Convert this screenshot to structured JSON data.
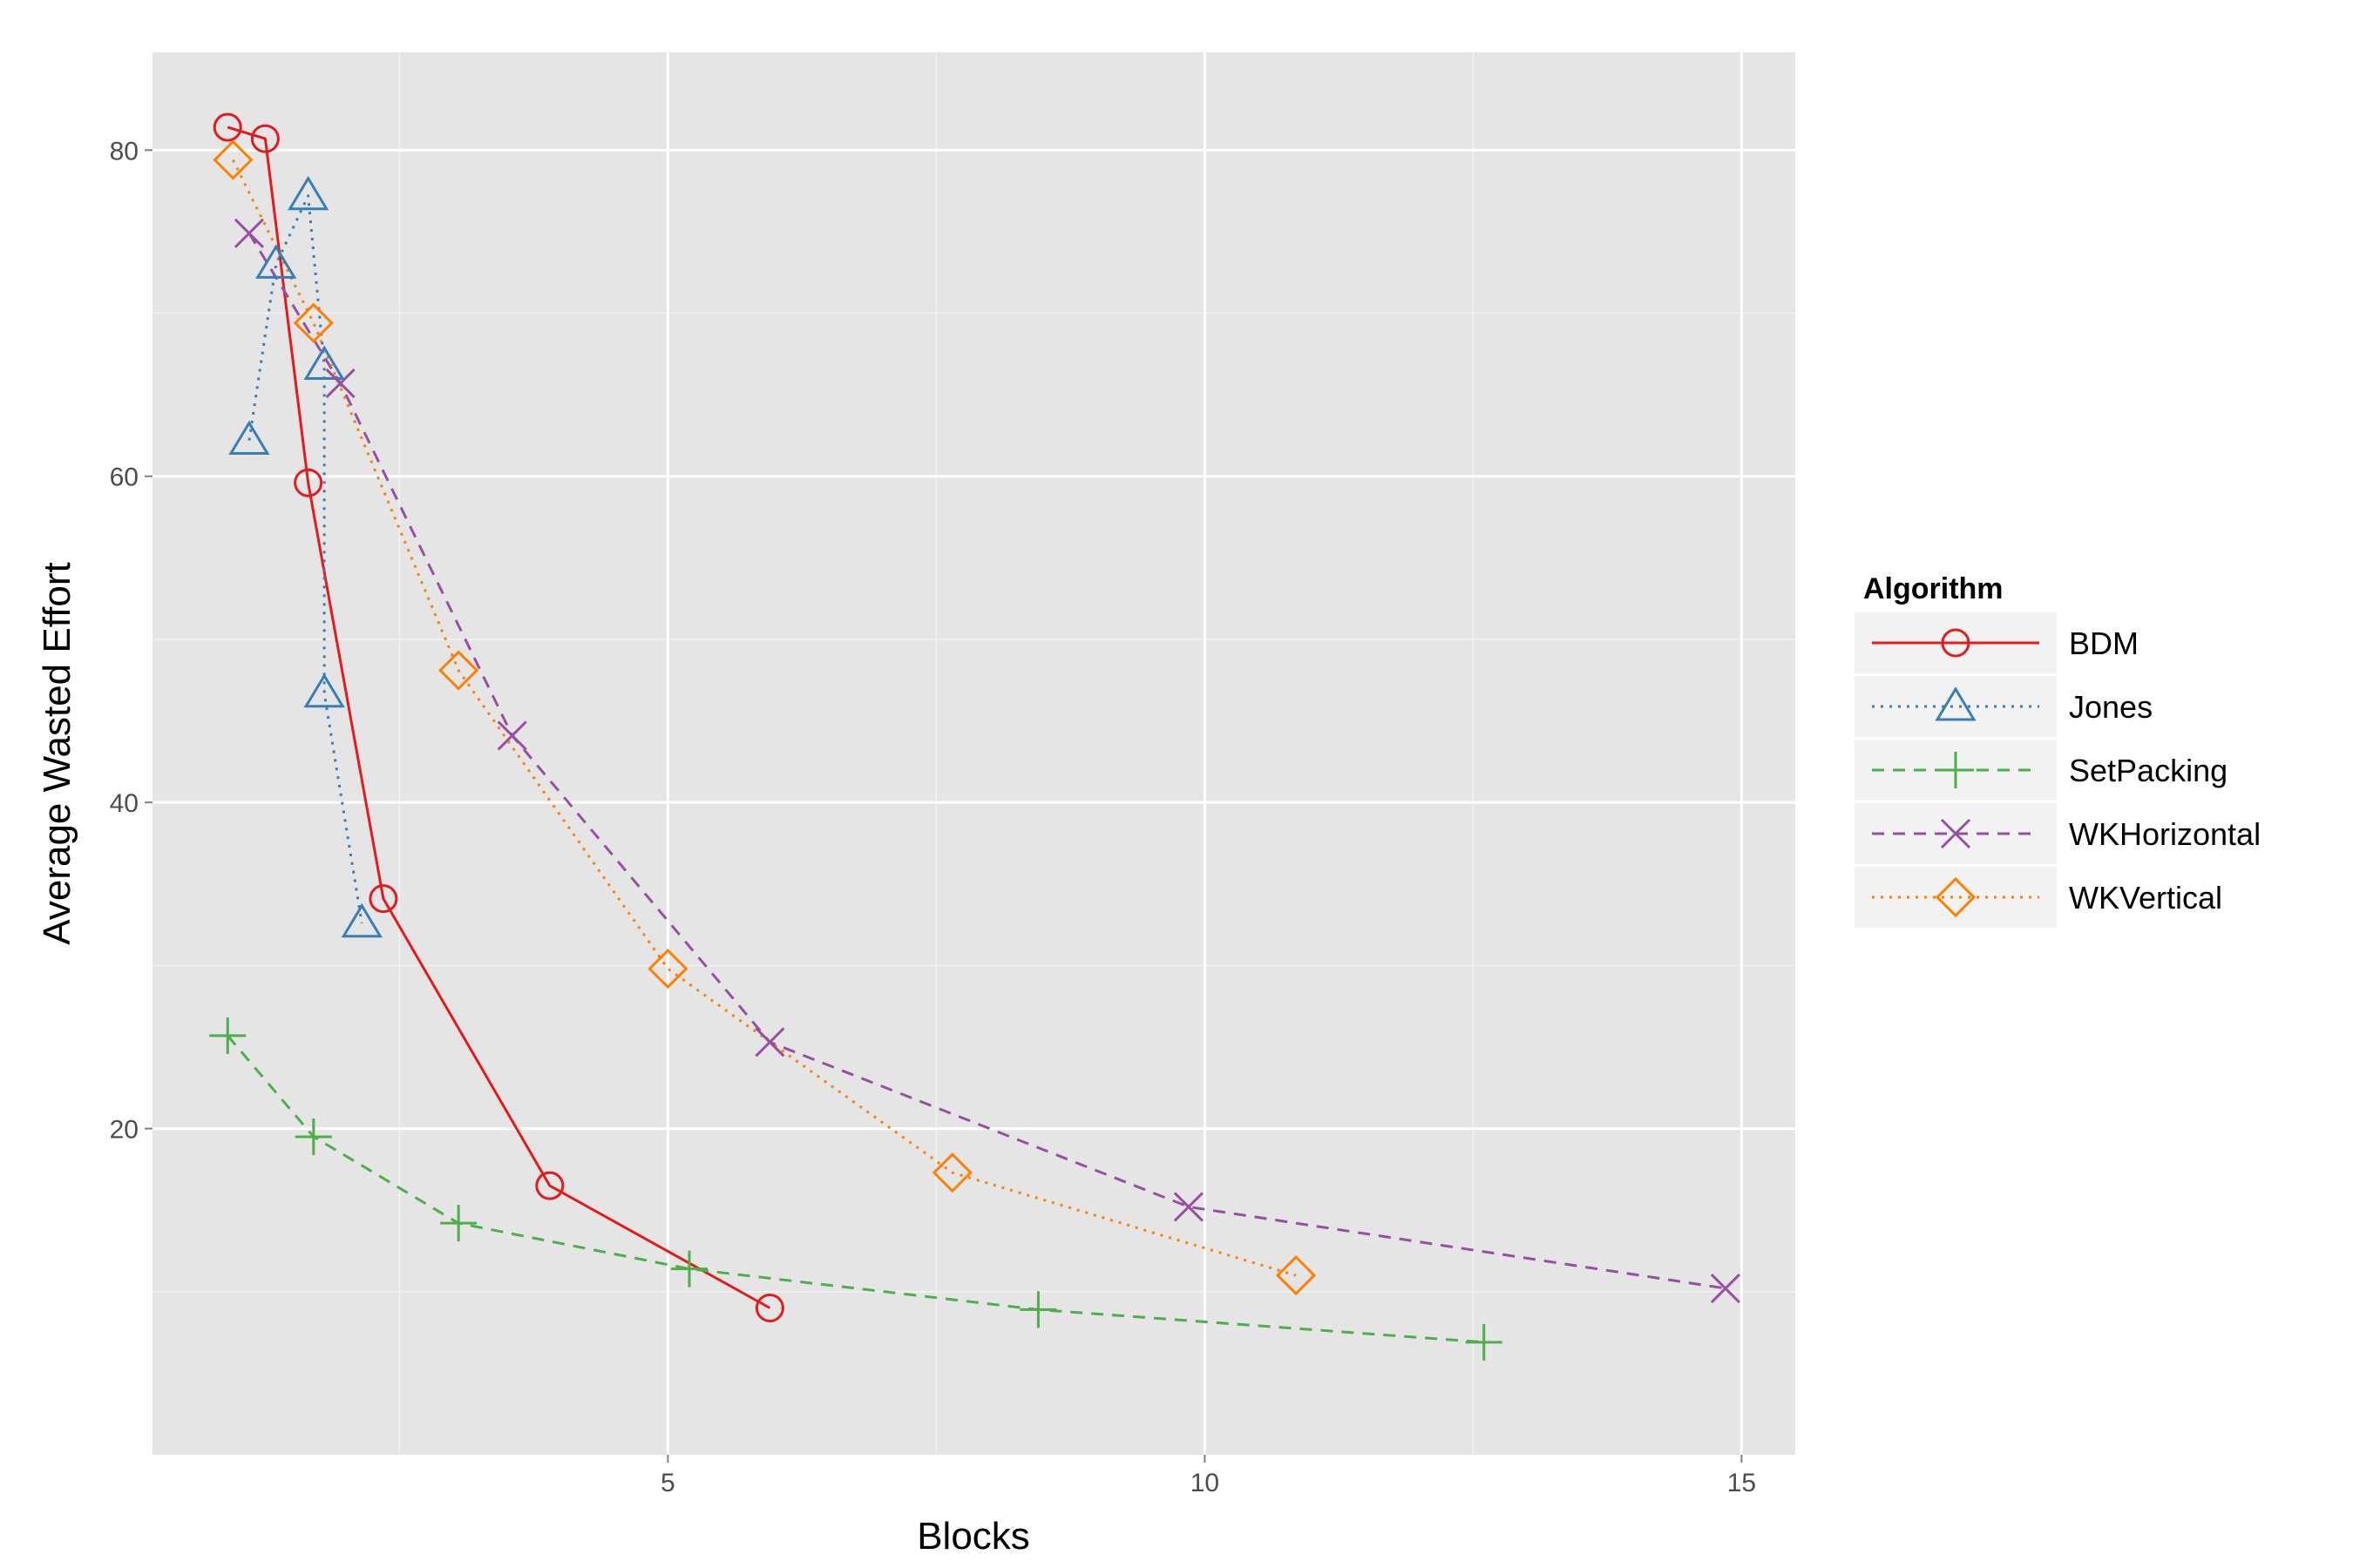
{
  "chart_data": {
    "type": "line",
    "xlabel": "Blocks",
    "ylabel": "Average Wasted Effort",
    "xlim": [
      0.2,
      15.5
    ],
    "ylim": [
      0,
      86
    ],
    "x_ticks": [
      5,
      10,
      15
    ],
    "y_ticks": [
      20,
      40,
      60,
      80
    ],
    "grid": true,
    "legend": {
      "title": "Algorithm",
      "position": "right"
    },
    "series": [
      {
        "name": "BDM",
        "color": "#e41a1c",
        "marker": "circle",
        "dash": "solid",
        "points": [
          [
            0.9,
            81.4
          ],
          [
            1.25,
            80.7
          ],
          [
            1.65,
            59.6
          ],
          [
            2.35,
            34.1
          ],
          [
            3.9,
            16.5
          ],
          [
            5.95,
            9.0
          ]
        ]
      },
      {
        "name": "Jones",
        "color": "#377eb8",
        "marker": "triangle",
        "dash": "dotted",
        "points": [
          [
            1.1,
            62.2
          ],
          [
            1.35,
            73.0
          ],
          [
            1.65,
            77.2
          ],
          [
            1.8,
            66.8
          ],
          [
            1.8,
            46.7
          ],
          [
            2.15,
            32.6
          ]
        ]
      },
      {
        "name": "SetPacking",
        "color": "#4daf4a",
        "marker": "plus",
        "dash": "dashed",
        "points": [
          [
            0.9,
            25.7
          ],
          [
            1.7,
            19.5
          ],
          [
            3.05,
            14.2
          ],
          [
            5.2,
            11.4
          ],
          [
            8.45,
            8.9
          ],
          [
            12.6,
            6.9
          ]
        ]
      },
      {
        "name": "WKHorizontal",
        "color": "#984ea3",
        "marker": "cross",
        "dash": "dashed",
        "points": [
          [
            1.1,
            74.9
          ],
          [
            1.95,
            65.7
          ],
          [
            3.55,
            44.1
          ],
          [
            5.95,
            25.3
          ],
          [
            9.85,
            15.2
          ],
          [
            14.85,
            10.2
          ]
        ]
      },
      {
        "name": "WKVertical",
        "color": "#ff7f00",
        "marker": "diamond",
        "dash": "dotted",
        "points": [
          [
            0.95,
            79.4
          ],
          [
            1.7,
            69.4
          ],
          [
            3.05,
            48.1
          ],
          [
            5.0,
            29.8
          ],
          [
            7.65,
            17.3
          ],
          [
            10.85,
            11.0
          ]
        ]
      }
    ]
  }
}
